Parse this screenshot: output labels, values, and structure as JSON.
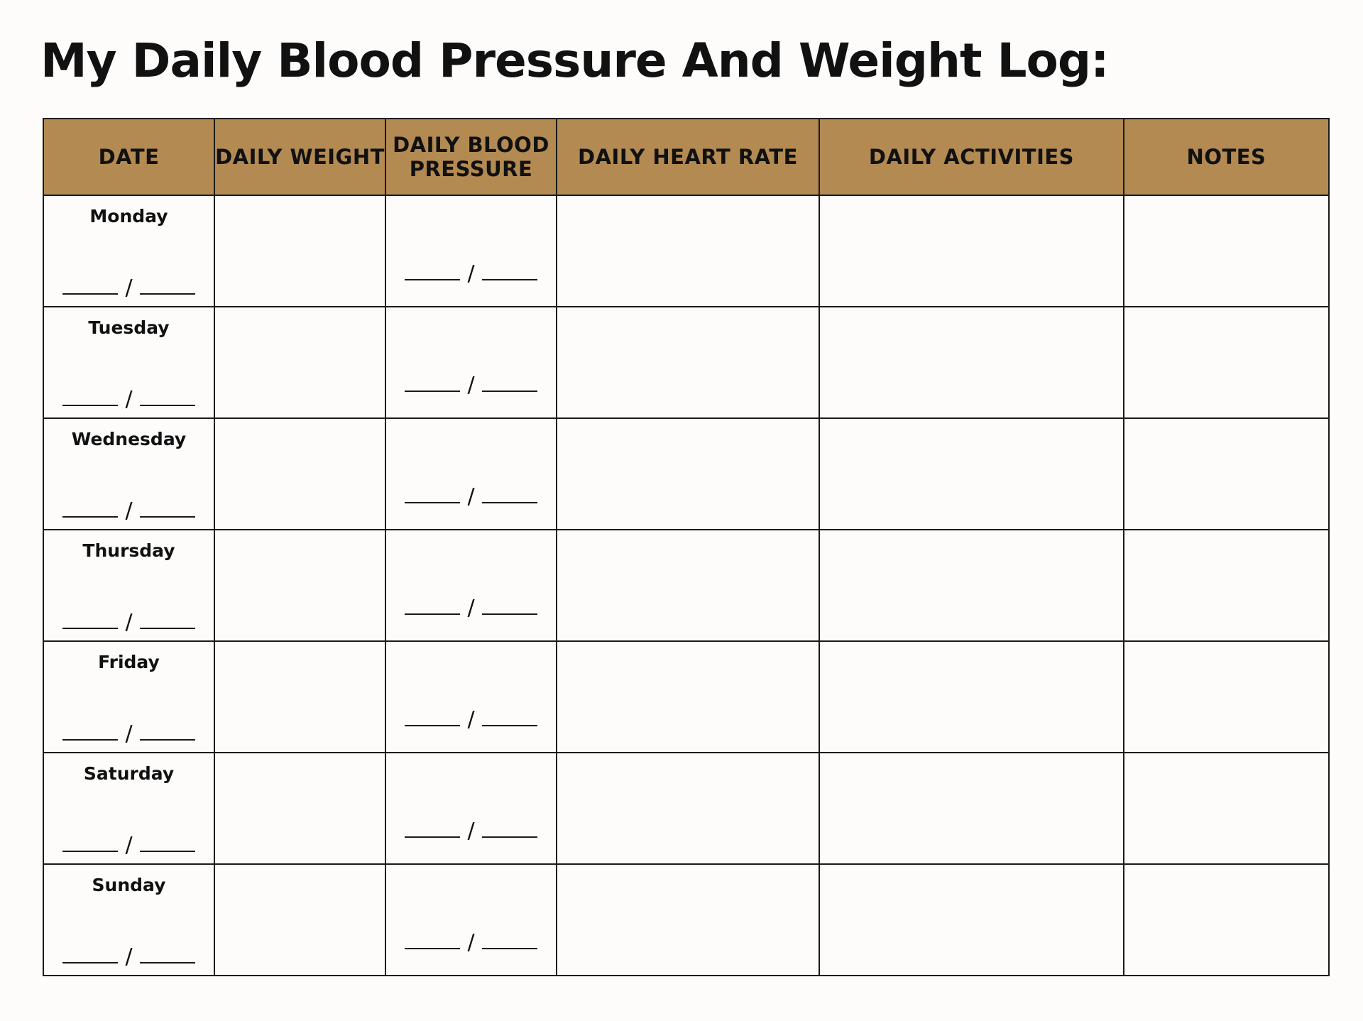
{
  "title": "My Daily Blood Pressure And Weight Log:",
  "colors": {
    "header_bg": "#b38a52",
    "border": "#1a1a1a",
    "page_bg": "#fdfcfa",
    "text": "#111111"
  },
  "table": {
    "columns": [
      "DATE",
      "DAILY WEIGHT",
      "DAILY BLOOD PRESSURE",
      "DAILY HEART RATE",
      "DAILY ACTIVITIES",
      "NOTES"
    ],
    "days": [
      "Monday",
      "Tuesday",
      "Wednesday",
      "Thursday",
      "Friday",
      "Saturday",
      "Sunday"
    ],
    "separator": "/"
  }
}
